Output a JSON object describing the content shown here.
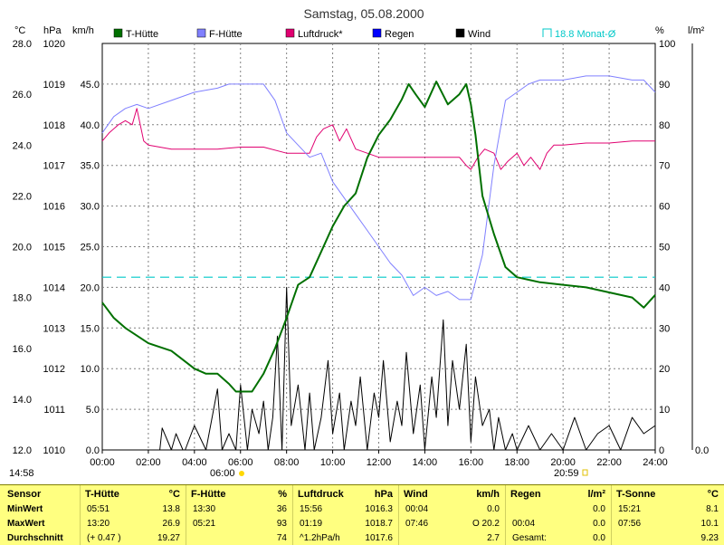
{
  "title": "Samstag, 05.08.2000",
  "axes": {
    "temp_unit": "°C",
    "press_unit": "hPa",
    "wind_unit": "km/h",
    "pct_unit": "%",
    "rain_unit": "l/m²",
    "temp_ticks": [
      "28.0",
      "26.0",
      "24.0",
      "22.0",
      "20.0",
      "18.0",
      "16.0",
      "14.0",
      "12.0"
    ],
    "press_ticks": [
      "1020",
      "1019",
      "1018",
      "1017",
      "1016",
      "1015",
      "1014",
      "1013",
      "1012",
      "1011",
      "1010"
    ],
    "wind_ticks": [
      "45.0",
      "40.0",
      "35.0",
      "30.0",
      "25.0",
      "20.0",
      "15.0",
      "10.0",
      "5.0",
      "0.0"
    ],
    "pct_ticks": [
      "100",
      "90",
      "80",
      "70",
      "60",
      "50",
      "40",
      "30",
      "20",
      "10",
      "0"
    ],
    "rain_ticks": [
      "0.0"
    ],
    "x_ticks": [
      "00:00",
      "02:00",
      "04:00",
      "06:00",
      "08:00",
      "10:00",
      "12:00",
      "14:00",
      "16:00",
      "18:00",
      "20:00",
      "22:00",
      "24:00"
    ],
    "update_time": "14:58",
    "sunrise": "06:00",
    "sunset": "20:59"
  },
  "legend": [
    {
      "label": "T-Hütte",
      "color": "#007000"
    },
    {
      "label": "F-Hütte",
      "color": "#8080ff"
    },
    {
      "label": "Luftdruck*",
      "color": "#e00070"
    },
    {
      "label": "Regen",
      "color": "#0000ff"
    },
    {
      "label": "Wind",
      "color": "#000000"
    },
    {
      "label": "18.8 Monat-Ø",
      "color": "#00c8c8"
    }
  ],
  "chart_data": {
    "type": "line",
    "x_range": [
      0,
      24
    ],
    "temp_range": [
      12,
      28
    ],
    "monthly_avg_temp": 18.8,
    "series": [
      {
        "name": "T-Hütte",
        "axis": "temp",
        "color": "#007000",
        "x": [
          0,
          0.5,
          1,
          1.5,
          2,
          3,
          4,
          4.5,
          5,
          5.5,
          5.8,
          6,
          6.5,
          7,
          7.5,
          8,
          8.5,
          9,
          9.5,
          10,
          10.5,
          11,
          11.5,
          12,
          12.5,
          13,
          13.3,
          13.6,
          14,
          14.5,
          15,
          15.5,
          15.8,
          16,
          16.2,
          16.5,
          17,
          17.5,
          18,
          18.5,
          19,
          20,
          21,
          22,
          23,
          23.5,
          24
        ],
        "y": [
          17.8,
          17.2,
          16.8,
          16.5,
          16.2,
          15.9,
          15.2,
          15.0,
          15.0,
          14.6,
          14.3,
          14.3,
          14.3,
          15.0,
          16.0,
          17.2,
          18.5,
          18.8,
          19.8,
          20.8,
          21.6,
          22.1,
          23.5,
          24.4,
          25.0,
          25.8,
          26.4,
          26.0,
          25.5,
          26.5,
          25.6,
          26.0,
          26.4,
          25.6,
          24.4,
          22.0,
          20.5,
          19.2,
          18.8,
          18.7,
          18.6,
          18.5,
          18.4,
          18.2,
          18.0,
          17.6,
          18.1
        ]
      },
      {
        "name": "F-Hütte",
        "axis": "pct",
        "color": "#8080ff",
        "x": [
          0,
          0.5,
          1,
          1.5,
          2,
          3,
          4,
          5,
          5.5,
          6,
          6.5,
          7,
          7.5,
          8,
          8.5,
          9,
          9.5,
          10,
          10.5,
          11,
          11.5,
          12,
          12.5,
          13,
          13.5,
          14,
          14.5,
          15,
          15.5,
          16,
          16.5,
          17,
          17.5,
          18,
          18.5,
          19,
          20,
          21,
          22,
          23,
          23.5,
          24
        ],
        "y": [
          78,
          82,
          84,
          85,
          84,
          86,
          88,
          89,
          90,
          90,
          90,
          90,
          86,
          78,
          75,
          72,
          73,
          66,
          62,
          58,
          54,
          50,
          46,
          43,
          38,
          40,
          38,
          39,
          37,
          37,
          48,
          70,
          86,
          88,
          90,
          91,
          91,
          92,
          92,
          91,
          91,
          88
        ]
      },
      {
        "name": "Luftdruck*",
        "axis": "press",
        "color": "#e00070",
        "x": [
          0,
          0.3,
          0.7,
          1,
          1.3,
          1.5,
          1.8,
          2,
          3,
          4,
          5,
          6,
          7,
          8,
          9,
          9.3,
          9.6,
          10,
          10.3,
          10.6,
          11,
          11.5,
          12,
          13,
          14,
          15,
          15.5,
          15.8,
          16,
          16.3,
          16.6,
          17,
          17.3,
          17.6,
          18,
          18.3,
          18.6,
          19,
          19.3,
          19.6,
          20,
          21,
          22,
          23,
          24
        ],
        "y": [
          1017.6,
          1017.8,
          1018.0,
          1018.1,
          1018.0,
          1018.4,
          1017.6,
          1017.5,
          1017.4,
          1017.4,
          1017.4,
          1017.45,
          1017.45,
          1017.3,
          1017.3,
          1017.7,
          1017.9,
          1018.0,
          1017.6,
          1017.9,
          1017.4,
          1017.3,
          1017.2,
          1017.2,
          1017.2,
          1017.2,
          1017.2,
          1017.0,
          1016.9,
          1017.2,
          1017.4,
          1017.3,
          1016.9,
          1017.1,
          1017.3,
          1017.0,
          1017.2,
          1016.9,
          1017.3,
          1017.5,
          1017.5,
          1017.55,
          1017.55,
          1017.6,
          1017.6
        ]
      },
      {
        "name": "Wind",
        "axis": "wind",
        "color": "#000000",
        "x": [
          2.5,
          2.6,
          3,
          3.2,
          3.5,
          3.6,
          4,
          4.5,
          5,
          5.2,
          5.5,
          5.8,
          6,
          6.3,
          6.5,
          6.8,
          7,
          7.2,
          7.4,
          7.6,
          7.8,
          8,
          8.2,
          8.5,
          8.8,
          9,
          9.2,
          9.5,
          9.8,
          10,
          10.3,
          10.5,
          10.8,
          11,
          11.2,
          11.5,
          11.8,
          12,
          12.2,
          12.5,
          12.8,
          13,
          13.2,
          13.5,
          13.8,
          14,
          14.3,
          14.5,
          14.8,
          15,
          15.2,
          15.5,
          15.8,
          16,
          16.2,
          16.5,
          16.8,
          17,
          17.2,
          17.5,
          17.8,
          18,
          18.5,
          19,
          19.5,
          20,
          20.5,
          21,
          21.5,
          22,
          22.5,
          23,
          23.5,
          24
        ],
        "y": [
          0,
          2.7,
          0,
          2,
          0,
          0,
          3,
          0,
          7.5,
          0,
          2,
          0,
          8,
          0,
          5,
          2,
          6,
          0,
          4,
          14,
          0,
          20,
          3,
          8,
          0,
          7,
          0,
          4,
          11,
          2,
          7,
          0,
          6,
          3,
          9,
          0,
          7,
          4,
          11,
          1,
          6,
          3,
          12,
          2,
          8,
          0,
          9,
          4,
          16,
          3,
          11,
          5,
          13,
          1,
          9,
          3,
          5,
          0,
          4,
          0,
          2,
          0,
          3,
          0,
          2,
          0,
          4,
          0,
          2,
          3,
          0,
          4,
          2,
          3
        ]
      }
    ]
  },
  "stats": {
    "headers": {
      "sensor": "Sensor",
      "t": "T-Hütte",
      "t_unit": "°C",
      "f": "F-Hütte",
      "f_unit": "%",
      "p": "Luftdruck",
      "p_unit": "hPa",
      "w": "Wind",
      "w_unit": "km/h",
      "r": "Regen",
      "r_unit": "l/m²",
      "s": "T-Sonne",
      "s_unit": "°C"
    },
    "row_labels": [
      "MinWert",
      "MaxWert",
      "Durchschnitt"
    ],
    "t": [
      [
        "05:51",
        "13.8"
      ],
      [
        "13:20",
        "26.9"
      ],
      [
        "(+ 0.47 )",
        "19.27"
      ]
    ],
    "f": [
      [
        "13:30",
        "36"
      ],
      [
        "05:21",
        "93"
      ],
      [
        "",
        "74"
      ]
    ],
    "p": [
      [
        "15:56",
        "1016.3"
      ],
      [
        "01:19",
        "1018.7"
      ],
      [
        "^1.2hPa/h",
        "1017.6"
      ]
    ],
    "w": [
      [
        "00:04",
        "0.0"
      ],
      [
        "07:46",
        "O 20.2"
      ],
      [
        "",
        "2.7"
      ]
    ],
    "r": [
      [
        "",
        "0.0"
      ],
      [
        "00:04",
        "0.0"
      ],
      [
        "Gesamt:",
        "0.0"
      ]
    ],
    "s": [
      [
        "15:21",
        "8.1"
      ],
      [
        "07:56",
        "10.1"
      ],
      [
        "",
        "9.23"
      ]
    ]
  }
}
